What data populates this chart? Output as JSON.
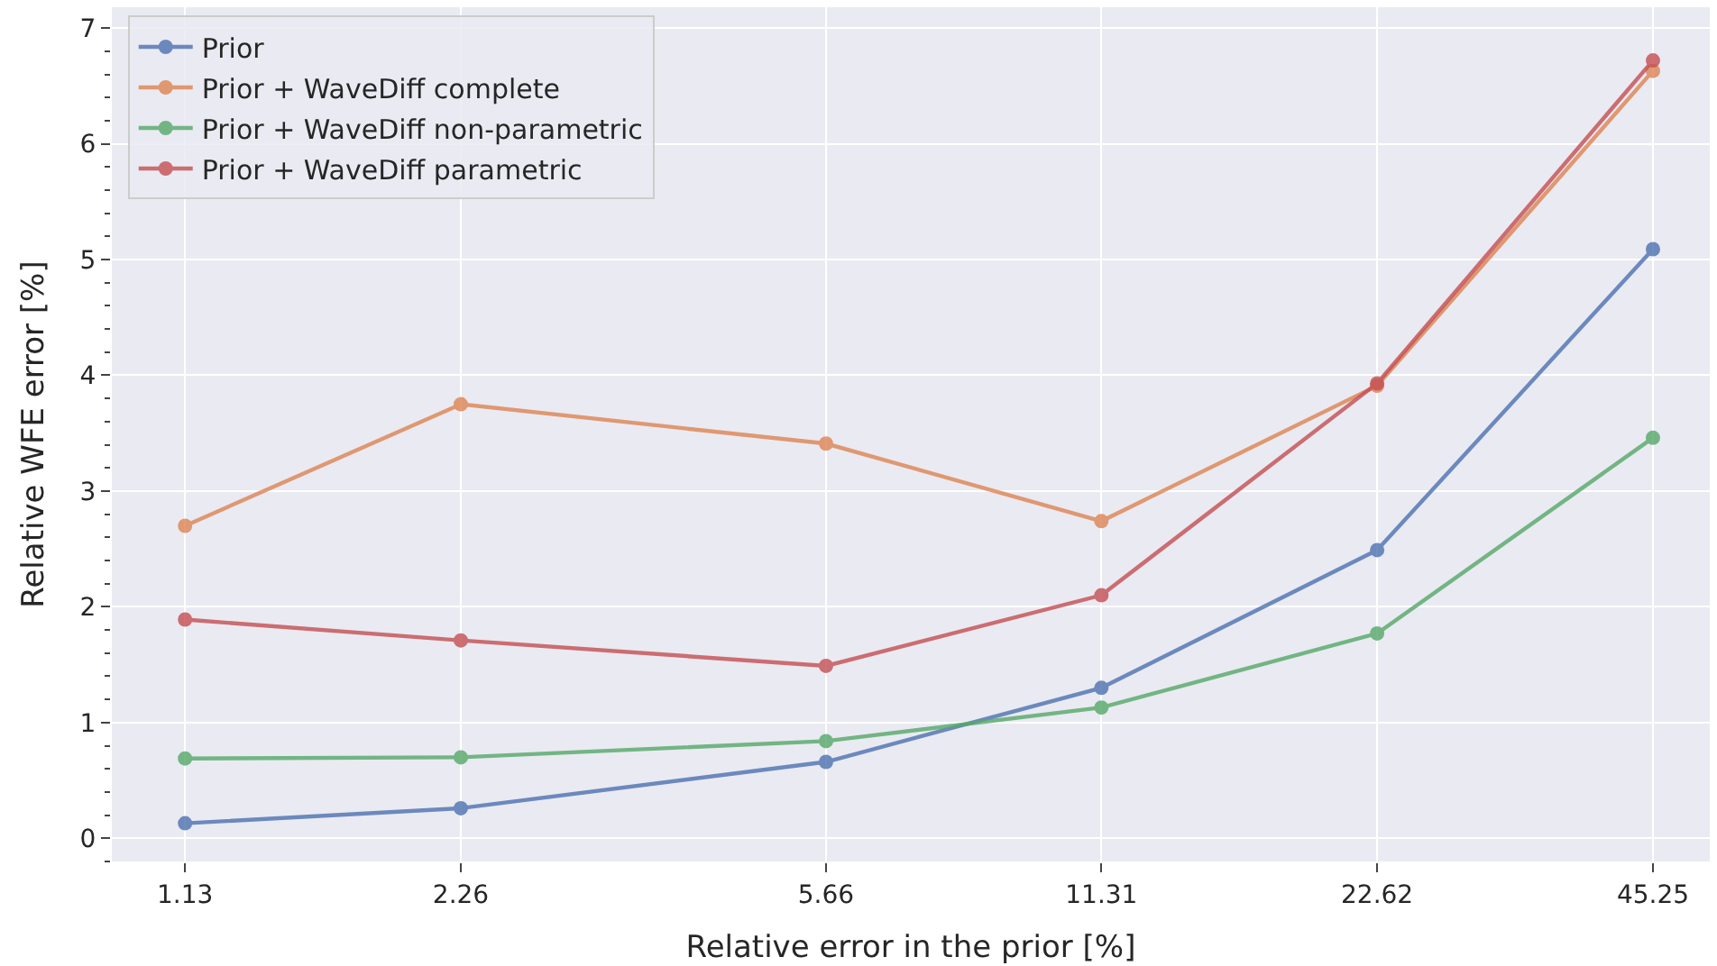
{
  "chart_data": {
    "type": "line",
    "xlabel": "Relative error in the prior [%]",
    "ylabel": "Relative WFE error [%]",
    "x": [
      1.13,
      2.26,
      5.66,
      11.31,
      22.62,
      45.25
    ],
    "series": [
      {
        "name": "Prior",
        "color": "#4c72b0",
        "values": [
          0.13,
          0.26,
          0.66,
          1.3,
          2.49,
          5.09
        ]
      },
      {
        "name": "Prior + WaveDiff complete",
        "color": "#dd8452",
        "values": [
          2.7,
          3.75,
          3.41,
          2.74,
          3.91,
          6.63
        ]
      },
      {
        "name": "Prior + WaveDiff non-parametric",
        "color": "#55a868",
        "values": [
          0.69,
          0.7,
          0.84,
          1.13,
          1.77,
          3.46
        ]
      },
      {
        "name": "Prior + WaveDiff parametric",
        "color": "#c44e52",
        "values": [
          1.89,
          1.71,
          1.49,
          2.1,
          3.93,
          6.72
        ]
      }
    ],
    "log": "x",
    "xlim": [
      0.94,
      52.2
    ],
    "ylim": [
      -0.2,
      7.18
    ],
    "xticks": [
      1.13,
      2.26,
      5.66,
      11.31,
      22.62,
      45.25
    ],
    "yticks": [
      0,
      1,
      2,
      3,
      4,
      5,
      6,
      7
    ],
    "grid": true,
    "legend": "top left",
    "marker": "circle",
    "line_style": "solid"
  }
}
